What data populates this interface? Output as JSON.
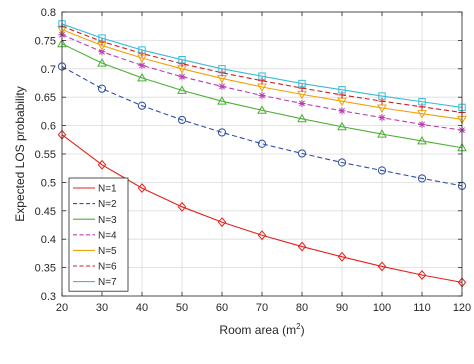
{
  "chart_data": {
    "type": "line",
    "title": "",
    "xlabel": "Room area (m",
    "xlabel_sup": "2",
    "xlabel_close": ")",
    "ylabel": "Expected LOS probability",
    "xlim": [
      20,
      120
    ],
    "ylim": [
      0.3,
      0.8
    ],
    "xticks": [
      "20",
      "30",
      "40",
      "50",
      "60",
      "70",
      "80",
      "90",
      "100",
      "110",
      "120"
    ],
    "yticks": [
      "0.3",
      "0.35",
      "0.4",
      "0.45",
      "0.5",
      "0.55",
      "0.6",
      "0.65",
      "0.7",
      "0.75",
      "0.8"
    ],
    "grid": true,
    "legend_position": "bottom-left",
    "x": [
      20,
      30,
      40,
      50,
      60,
      70,
      80,
      90,
      100,
      110,
      120
    ],
    "series": [
      {
        "name": "N=1",
        "color": "#e3211b",
        "dash": "solid",
        "marker": "diamond",
        "values": [
          0.584,
          0.531,
          0.49,
          0.457,
          0.43,
          0.407,
          0.387,
          0.369,
          0.352,
          0.337,
          0.324
        ]
      },
      {
        "name": "N=2",
        "color": "#2f4fa3",
        "dash": "dashed",
        "marker": "circle",
        "values": [
          0.704,
          0.665,
          0.635,
          0.61,
          0.588,
          0.568,
          0.551,
          0.535,
          0.521,
          0.507,
          0.494
        ]
      },
      {
        "name": "N=3",
        "color": "#4caf35",
        "dash": "solid",
        "marker": "triangle-up",
        "values": [
          0.744,
          0.71,
          0.684,
          0.662,
          0.643,
          0.627,
          0.612,
          0.598,
          0.585,
          0.573,
          0.561
        ]
      },
      {
        "name": "N=4",
        "color": "#b83fb0",
        "dash": "dashed",
        "marker": "asterisk",
        "values": [
          0.76,
          0.73,
          0.706,
          0.686,
          0.669,
          0.653,
          0.639,
          0.626,
          0.614,
          0.602,
          0.592
        ]
      },
      {
        "name": "N=5",
        "color": "#f0a20a",
        "dash": "solid",
        "marker": "triangle-down",
        "values": [
          0.769,
          0.741,
          0.719,
          0.7,
          0.683,
          0.668,
          0.655,
          0.643,
          0.631,
          0.621,
          0.611
        ]
      },
      {
        "name": "N=6",
        "color": "#cf2026",
        "dash": "dashed",
        "marker": "plus",
        "values": [
          0.775,
          0.748,
          0.727,
          0.709,
          0.693,
          0.679,
          0.666,
          0.654,
          0.643,
          0.633,
          0.623
        ]
      },
      {
        "name": "N=7",
        "color": "#3bbbd8",
        "dash": "solid",
        "marker": "square",
        "values": [
          0.779,
          0.754,
          0.733,
          0.716,
          0.7,
          0.687,
          0.674,
          0.663,
          0.652,
          0.642,
          0.632
        ]
      }
    ]
  }
}
